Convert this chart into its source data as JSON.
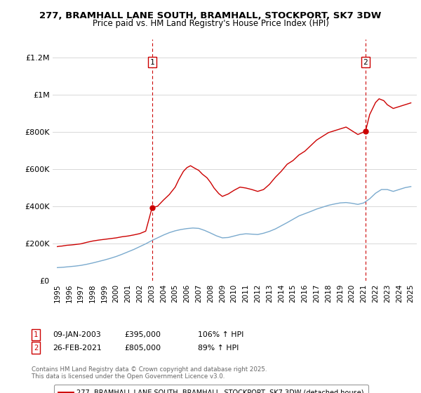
{
  "title": "277, BRAMHALL LANE SOUTH, BRAMHALL, STOCKPORT, SK7 3DW",
  "subtitle": "Price paid vs. HM Land Registry's House Price Index (HPI)",
  "ylim": [
    0,
    1300000
  ],
  "yticks": [
    0,
    200000,
    400000,
    600000,
    800000,
    1000000,
    1200000
  ],
  "ytick_labels": [
    "£0",
    "£200K",
    "£400K",
    "£600K",
    "£800K",
    "£1M",
    "£1.2M"
  ],
  "background_color": "#ffffff",
  "grid_color": "#d8d8d8",
  "red_line_color": "#cc0000",
  "blue_line_color": "#7aaace",
  "marker1_year": 2003.04,
  "marker1_value": 395000,
  "marker1_label": "1",
  "marker1_date": "09-JAN-2003",
  "marker1_price": "£395,000",
  "marker1_hpi": "106% ↑ HPI",
  "marker2_year": 2021.15,
  "marker2_value": 805000,
  "marker2_label": "2",
  "marker2_date": "26-FEB-2021",
  "marker2_price": "£805,000",
  "marker2_hpi": "89% ↑ HPI",
  "legend_line1": "277, BRAMHALL LANE SOUTH, BRAMHALL, STOCKPORT, SK7 3DW (detached house)",
  "legend_line2": "HPI: Average price, detached house, Stockport",
  "footer": "Contains HM Land Registry data © Crown copyright and database right 2025.\nThis data is licensed under the Open Government Licence v3.0.",
  "xmin": 1994.6,
  "xmax": 2025.5,
  "xtick_years": [
    1995,
    1996,
    1997,
    1998,
    1999,
    2000,
    2001,
    2002,
    2003,
    2004,
    2005,
    2006,
    2007,
    2008,
    2009,
    2010,
    2011,
    2012,
    2013,
    2014,
    2015,
    2016,
    2017,
    2018,
    2019,
    2020,
    2021,
    2022,
    2023,
    2024,
    2025
  ],
  "red_x": [
    1995.0,
    1995.2,
    1995.4,
    1995.6,
    1995.8,
    1996.0,
    1996.2,
    1996.5,
    1997.0,
    1997.5,
    1998.0,
    1998.5,
    1999.0,
    1999.5,
    2000.0,
    2000.5,
    2001.0,
    2001.5,
    2002.0,
    2002.5,
    2003.04,
    2003.5,
    2004.0,
    2004.5,
    2005.0,
    2005.3,
    2005.7,
    2006.0,
    2006.3,
    2006.7,
    2007.0,
    2007.3,
    2007.7,
    2008.0,
    2008.3,
    2008.7,
    2009.0,
    2009.5,
    2010.0,
    2010.5,
    2011.0,
    2011.5,
    2012.0,
    2012.5,
    2013.0,
    2013.5,
    2014.0,
    2014.5,
    2015.0,
    2015.5,
    2016.0,
    2016.5,
    2017.0,
    2017.5,
    2018.0,
    2018.5,
    2019.0,
    2019.5,
    2020.0,
    2020.5,
    2021.15,
    2021.5,
    2022.0,
    2022.3,
    2022.7,
    2023.0,
    2023.5,
    2024.0,
    2024.5,
    2025.0
  ],
  "red_y": [
    185000,
    187000,
    188000,
    190000,
    192000,
    193000,
    194000,
    196000,
    200000,
    208000,
    215000,
    220000,
    224000,
    228000,
    232000,
    238000,
    242000,
    248000,
    255000,
    268000,
    395000,
    402000,
    435000,
    465000,
    505000,
    545000,
    590000,
    610000,
    620000,
    605000,
    595000,
    575000,
    555000,
    530000,
    500000,
    470000,
    455000,
    468000,
    488000,
    505000,
    500000,
    492000,
    482000,
    492000,
    520000,
    558000,
    590000,
    628000,
    648000,
    678000,
    698000,
    728000,
    758000,
    778000,
    798000,
    808000,
    818000,
    828000,
    808000,
    788000,
    805000,
    895000,
    960000,
    980000,
    970000,
    948000,
    928000,
    938000,
    948000,
    958000
  ],
  "blue_x": [
    1995.0,
    1995.5,
    1996.0,
    1996.5,
    1997.0,
    1997.5,
    1998.0,
    1998.5,
    1999.0,
    1999.5,
    2000.0,
    2000.5,
    2001.0,
    2001.5,
    2002.0,
    2002.5,
    2003.0,
    2003.5,
    2004.0,
    2004.5,
    2005.0,
    2005.5,
    2006.0,
    2006.5,
    2007.0,
    2007.5,
    2008.0,
    2008.5,
    2009.0,
    2009.5,
    2010.0,
    2010.5,
    2011.0,
    2011.5,
    2012.0,
    2012.5,
    2013.0,
    2013.5,
    2014.0,
    2014.5,
    2015.0,
    2015.5,
    2016.0,
    2016.5,
    2017.0,
    2017.5,
    2018.0,
    2018.5,
    2019.0,
    2019.5,
    2020.0,
    2020.5,
    2021.0,
    2021.5,
    2022.0,
    2022.5,
    2023.0,
    2023.5,
    2024.0,
    2024.5,
    2025.0
  ],
  "blue_y": [
    72000,
    74000,
    77000,
    80000,
    84000,
    90000,
    97000,
    105000,
    113000,
    122000,
    132000,
    144000,
    157000,
    170000,
    185000,
    200000,
    217000,
    232000,
    247000,
    260000,
    270000,
    277000,
    282000,
    285000,
    283000,
    272000,
    258000,
    243000,
    232000,
    234000,
    242000,
    250000,
    254000,
    252000,
    250000,
    257000,
    267000,
    280000,
    297000,
    314000,
    332000,
    350000,
    362000,
    374000,
    387000,
    397000,
    407000,
    414000,
    420000,
    422000,
    418000,
    412000,
    420000,
    442000,
    472000,
    492000,
    492000,
    482000,
    492000,
    502000,
    508000
  ]
}
